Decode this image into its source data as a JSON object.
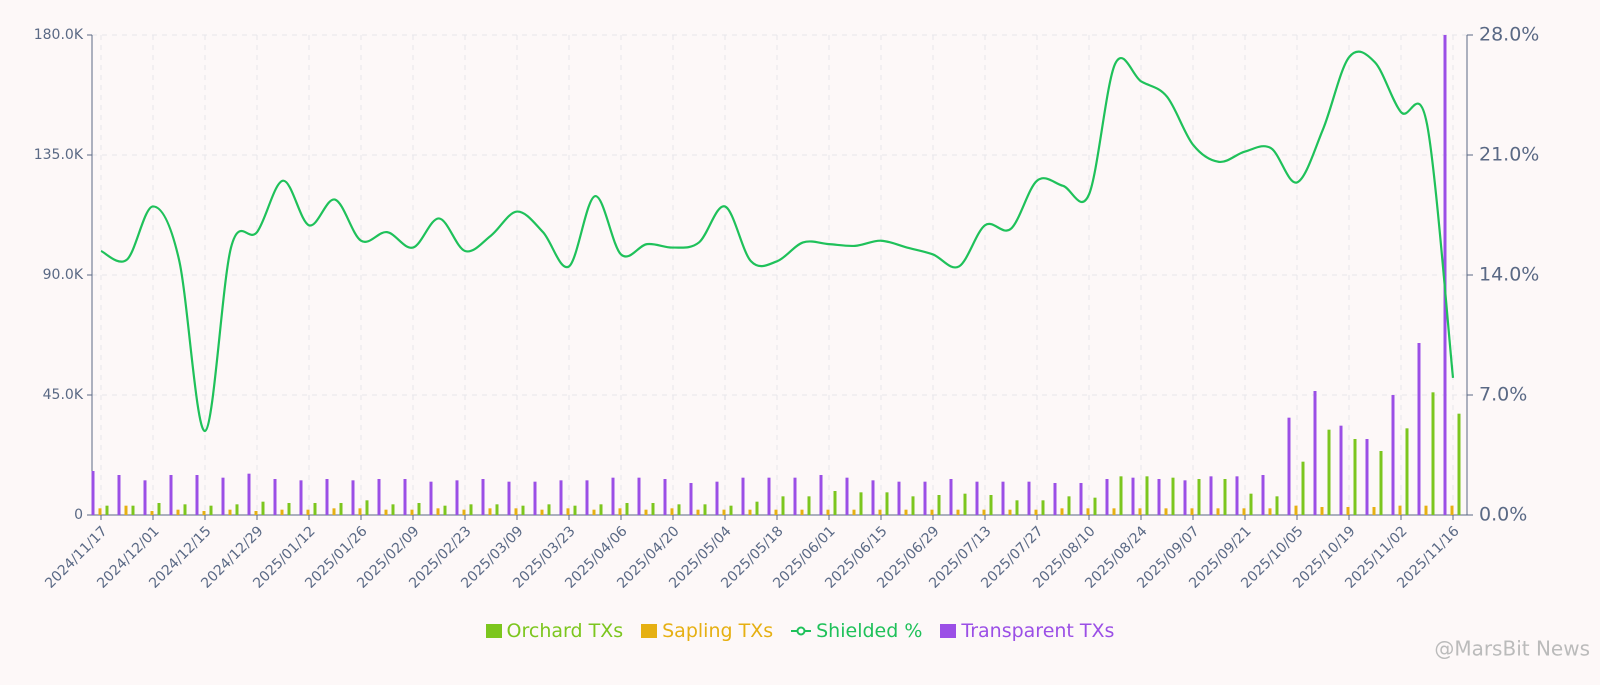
{
  "chart_data": {
    "type": "bar",
    "categories": [
      "2024/11/17",
      null,
      "2024/12/01",
      null,
      "2024/12/15",
      null,
      "2024/12/29",
      null,
      "2025/01/12",
      null,
      "2025/01/26",
      null,
      "2025/02/09",
      null,
      "2025/02/23",
      null,
      "2025/03/09",
      null,
      "2025/03/23",
      null,
      "2025/04/06",
      null,
      "2025/04/20",
      null,
      "2025/05/04",
      null,
      "2025/05/18",
      null,
      "2025/06/01",
      null,
      "2025/06/15",
      null,
      "2025/06/29",
      null,
      "2025/07/13",
      null,
      "2025/07/27",
      null,
      "2025/08/10",
      null,
      "2025/08/24",
      null,
      "2025/09/07",
      null,
      "2025/09/21",
      null,
      "2025/10/05",
      null,
      "2025/10/19",
      null,
      "2025/11/02",
      null,
      "2025/11/16"
    ],
    "series": [
      {
        "name": "Orchard TXs",
        "type": "bar",
        "color": "#7cc61e",
        "values": [
          3500,
          3500,
          4500,
          4000,
          3500,
          4000,
          5000,
          4500,
          4500,
          4500,
          5500,
          4000,
          4500,
          3500,
          4000,
          4000,
          3500,
          4000,
          3500,
          4000,
          4500,
          4500,
          4000,
          4000,
          3500,
          5000,
          7000,
          7000,
          9000,
          8500,
          8500,
          7000,
          7500,
          8000,
          7500,
          5500,
          5500,
          7000,
          6500,
          14500,
          14500,
          14000,
          13500,
          13500,
          8000,
          7000,
          20000,
          32000,
          28500,
          24000,
          32500,
          46000,
          38000
        ]
      },
      {
        "name": "Sapling TXs",
        "type": "bar",
        "color": "#e6b012",
        "values": [
          2500,
          3500,
          1500,
          2000,
          1500,
          2000,
          1500,
          2000,
          2000,
          2500,
          2500,
          2000,
          2000,
          2500,
          2000,
          2500,
          2500,
          2000,
          2500,
          2000,
          2500,
          2000,
          2500,
          2000,
          2000,
          2000,
          2000,
          2000,
          2000,
          2000,
          2000,
          2000,
          2000,
          2000,
          2000,
          2000,
          2000,
          2500,
          2500,
          2500,
          2500,
          2500,
          2500,
          2500,
          2500,
          2500,
          3500,
          3000,
          3000,
          3000,
          3500,
          3500,
          3500
        ]
      },
      {
        "name": "Shielded %",
        "type": "line",
        "axis": "y2",
        "color": "#1fc15a",
        "values": [
          15.4,
          14.9,
          18.0,
          14.9,
          4.9,
          15.6,
          16.5,
          19.5,
          16.9,
          18.4,
          16.0,
          16.5,
          15.6,
          17.3,
          15.4,
          16.3,
          17.7,
          16.5,
          14.5,
          18.6,
          15.2,
          15.8,
          15.6,
          15.9,
          18.0,
          14.8,
          14.8,
          15.9,
          15.8,
          15.7,
          16.0,
          15.6,
          15.2,
          14.5,
          16.9,
          16.7,
          19.5,
          19.2,
          18.7,
          26.3,
          25.3,
          24.4,
          21.6,
          20.6,
          21.2,
          21.4,
          19.4,
          22.5,
          26.7,
          26.4,
          23.5,
          22.8,
          8.0
        ]
      },
      {
        "name": "Transparent TXs",
        "type": "bar",
        "color": "#9b4fe6",
        "values": [
          16500,
          15000,
          13000,
          15000,
          15000,
          14000,
          15500,
          13500,
          13000,
          13500,
          13000,
          13500,
          13500,
          12500,
          13000,
          13500,
          12500,
          12500,
          13000,
          13000,
          14000,
          14000,
          13500,
          12000,
          12500,
          14000,
          14000,
          14000,
          15000,
          14000,
          13000,
          12500,
          12500,
          13500,
          12500,
          12500,
          12500,
          12000,
          12000,
          13500,
          14000,
          13500,
          13000,
          14500,
          14500,
          15000,
          36500,
          46500,
          33500,
          28500,
          45000,
          64500,
          180000
        ]
      }
    ],
    "ylim": [
      0,
      180000
    ],
    "yticks": [
      0,
      {
        "value": 45000,
        "label": "45.0K"
      },
      {
        "value": 90000,
        "label": "90.0K"
      },
      {
        "value": 135000,
        "label": "135.0K"
      },
      {
        "value": 180000,
        "label": "180.0K"
      }
    ],
    "y2lim": [
      0,
      28
    ],
    "y2ticks": [
      {
        "value": 0,
        "label": "0.0%"
      },
      {
        "value": 7,
        "label": "7.0%"
      },
      {
        "value": 14,
        "label": "14.0%"
      },
      {
        "value": 21,
        "label": "21.0%"
      },
      {
        "value": 28,
        "label": "28.0%"
      }
    ],
    "grid": true,
    "legend": "bottom",
    "watermark": "@MarsBit News"
  }
}
